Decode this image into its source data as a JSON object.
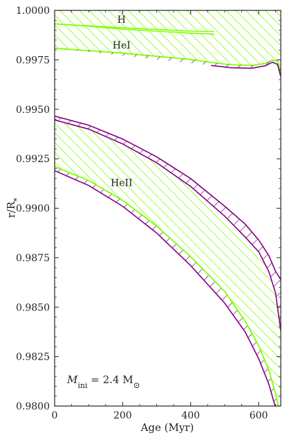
{
  "chart_data": {
    "type": "area",
    "title": "",
    "xlabel": "Age (Myr)",
    "ylabel": "r/R*",
    "xlim": [
      0,
      665
    ],
    "ylim": [
      0.98,
      1.0
    ],
    "xticks": [
      0,
      200,
      400,
      600
    ],
    "xtick_labels": [
      "0",
      "200",
      "400",
      "600"
    ],
    "yticks": [
      0.98,
      0.9825,
      0.985,
      0.9875,
      0.99,
      0.9925,
      0.995,
      0.9975,
      1.0
    ],
    "ytick_labels": [
      "0.9800",
      "0.9825",
      "0.9850",
      "0.9875",
      "0.9900",
      "0.9925",
      "0.9950",
      "0.9975",
      "1.0000"
    ],
    "grid": false,
    "legend": "none",
    "annotation": "M_ini = 2.4 M_sun",
    "annotation_parts": {
      "symbol": "M",
      "subscript": "ini",
      "equals": " = 2.4 M",
      "sun": "⊙"
    },
    "colors": {
      "convective_zone": "#7fff00",
      "overshoot": "#800080",
      "axis": "#222222"
    },
    "series": [
      {
        "name": "H",
        "kind": "convective_zone",
        "top": {
          "x": [
            0,
            665
          ],
          "y": [
            1.0,
            1.0
          ]
        },
        "bottom": {
          "x": [
            0,
            100,
            200,
            300,
            400,
            470
          ],
          "y": [
            0.99932,
            0.9992,
            0.99905,
            0.99895,
            0.99885,
            0.9988
          ]
        },
        "inner_top": {
          "x": [
            0,
            100,
            200,
            300,
            400,
            470
          ],
          "y": [
            0.99932,
            0.99922,
            0.99912,
            0.99904,
            0.99895,
            0.99893
          ]
        }
      },
      {
        "name": "HeI",
        "kind": "convective_zone",
        "top": {
          "x": [
            0,
            665
          ],
          "y": [
            1.0,
            1.0
          ]
        },
        "bottom": {
          "x": [
            0,
            100,
            200,
            300,
            400,
            460,
            520,
            580,
            620,
            640,
            655,
            665
          ],
          "y": [
            0.99808,
            0.99797,
            0.99784,
            0.99768,
            0.99752,
            0.99737,
            0.99725,
            0.99722,
            0.99732,
            0.99748,
            0.99745,
            0.99688
          ]
        },
        "overshoot_bottom": {
          "x": [
            460,
            520,
            580,
            620,
            640,
            655,
            665
          ],
          "y": [
            0.99722,
            0.9971,
            0.99708,
            0.9972,
            0.99738,
            0.99728,
            0.99665
          ]
        }
      },
      {
        "name": "HeII",
        "kind": "convective_zone",
        "top": {
          "x": [
            0,
            100,
            200,
            300,
            400,
            500,
            560,
            600,
            630,
            650,
            665
          ],
          "y": [
            0.99446,
            0.994,
            0.99325,
            0.9923,
            0.9911,
            0.9896,
            0.98855,
            0.9878,
            0.9868,
            0.9857,
            0.9838
          ]
        },
        "bottom": {
          "x": [
            0,
            100,
            200,
            300,
            400,
            500,
            560,
            600,
            630,
            650,
            665
          ],
          "y": [
            0.9921,
            0.9914,
            0.9904,
            0.9891,
            0.98755,
            0.9858,
            0.9843,
            0.98305,
            0.9818,
            0.9806,
            0.9794
          ]
        },
        "overshoot_top": {
          "x": [
            0,
            100,
            200,
            300,
            400,
            500,
            560,
            600,
            630,
            650,
            665
          ],
          "y": [
            0.99466,
            0.9942,
            0.9935,
            0.9926,
            0.9915,
            0.9901,
            0.9892,
            0.9884,
            0.9876,
            0.9868,
            0.9864
          ]
        },
        "overshoot_bottom": {
          "x": [
            0,
            100,
            200,
            300,
            400,
            500,
            560,
            600,
            630,
            650,
            665
          ],
          "y": [
            0.9919,
            0.99115,
            0.9901,
            0.98875,
            0.9871,
            0.9852,
            0.98375,
            0.9824,
            0.9811,
            0.9799,
            0.9788
          ]
        }
      }
    ],
    "zone_labels": [
      {
        "text": "H",
        "x": 270,
        "y": 0.99955
      },
      {
        "text": "HeI",
        "x": 270,
        "y": 0.99825
      },
      {
        "text": "HeII",
        "x": 270,
        "y": 0.9913
      }
    ]
  }
}
